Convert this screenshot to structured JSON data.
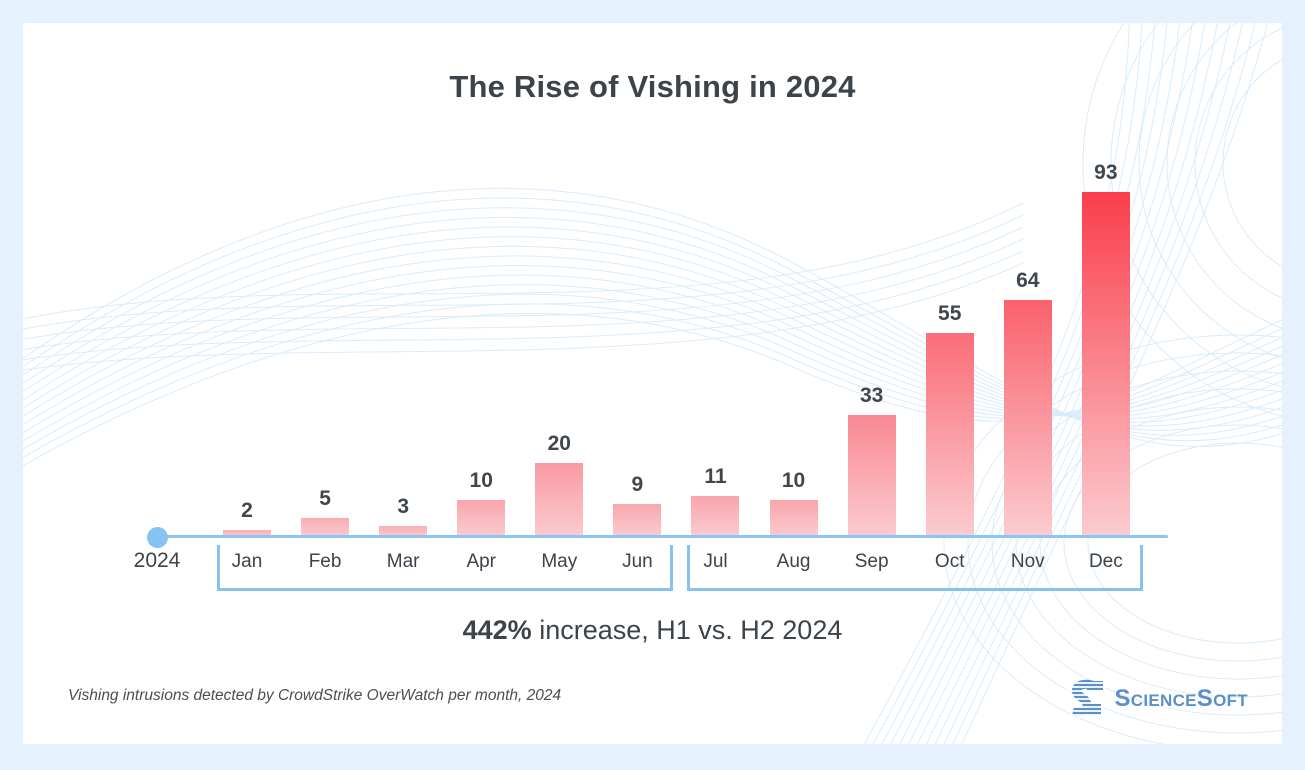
{
  "header": {
    "title": "The Rise of Vishing in 2024"
  },
  "chart_data": {
    "type": "bar",
    "categories": [
      "Jan",
      "Feb",
      "Mar",
      "Apr",
      "May",
      "Jun",
      "Jul",
      "Aug",
      "Sep",
      "Oct",
      "Nov",
      "Dec"
    ],
    "values": [
      2,
      5,
      3,
      10,
      20,
      9,
      11,
      10,
      33,
      55,
      64,
      93
    ],
    "title": "The Rise of Vishing in 2024",
    "xlabel": "",
    "ylabel": "",
    "ylim": [
      0,
      93
    ],
    "grid": false,
    "legend": "none",
    "year_label": "2024",
    "bar_labels_shown": true,
    "groups": [
      {
        "name": "H1",
        "from": "Jan",
        "to": "Jun"
      },
      {
        "name": "H2",
        "from": "Jul",
        "to": "Dec"
      }
    ],
    "annotation": "442% increase, H1 vs. H2 2024"
  },
  "summary": {
    "highlight": "442%",
    "rest": " increase, H1 vs. H2 2024"
  },
  "footnote": {
    "text": "Vishing intrusions detected by CrowdStrike OverWatch per month, 2024"
  },
  "logo": {
    "text": "ScienceSoft"
  },
  "colors": {
    "page_background": "#e5f2fd",
    "card_background": "#ffffff",
    "bar_red_top": "#fa3d4b",
    "bar_pink_low": "#f9b2b8",
    "bar_bottom": "#fbccd0",
    "axis_blue": "#8cc5f2",
    "dot_blue": "#85c3f2",
    "bracket_blue": "#86c1f1",
    "title_text": "#3d4449",
    "label_text": "#3c434a",
    "footnote_text": "#4d4d4d",
    "logo_blue": "#5b90c8",
    "pattern_line": "#d9ecfb"
  }
}
